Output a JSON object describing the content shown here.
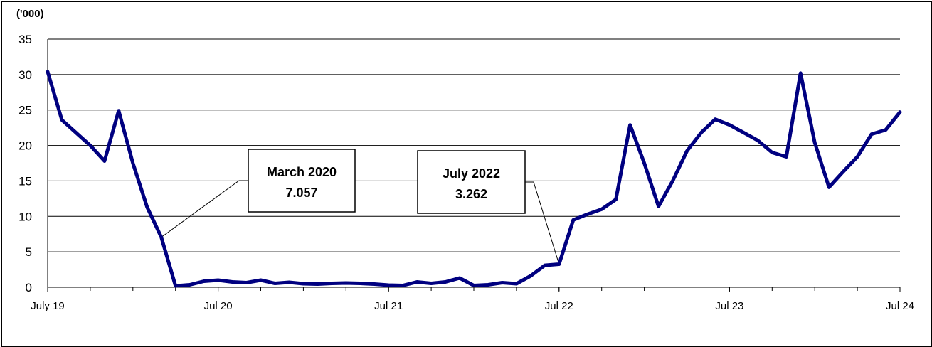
{
  "chart_data": {
    "type": "line",
    "unit_label": "('000)",
    "ylim": [
      0,
      35
    ],
    "yticks": [
      "0",
      "5",
      "10",
      "15",
      "20",
      "25",
      "30",
      "35"
    ],
    "xlim": [
      "2019-07",
      "2024-07"
    ],
    "xticks": [
      {
        "label": "July 19",
        "x": "2019-07"
      },
      {
        "label": "Jul 20",
        "x": "2020-07"
      },
      {
        "label": "Jul 21",
        "x": "2021-07"
      },
      {
        "label": "Jul 22",
        "x": "2022-07"
      },
      {
        "label": "Jul 23",
        "x": "2023-07"
      },
      {
        "label": "Jul 24",
        "x": "2024-07"
      }
    ],
    "grid": true,
    "line_color": "#000080",
    "series": [
      {
        "x": [
          "2019-07",
          "2019-08",
          "2019-09",
          "2019-10",
          "2019-11",
          "2019-12",
          "2020-01",
          "2020-02",
          "2020-03",
          "2020-04",
          "2020-05",
          "2020-06",
          "2020-07",
          "2020-08",
          "2020-09",
          "2020-10",
          "2020-11",
          "2020-12",
          "2021-01",
          "2021-02",
          "2021-03",
          "2021-04",
          "2021-05",
          "2021-06",
          "2021-07",
          "2021-08",
          "2021-09",
          "2021-10",
          "2021-11",
          "2021-12",
          "2022-01",
          "2022-02",
          "2022-03",
          "2022-04",
          "2022-05",
          "2022-06",
          "2022-07",
          "2022-08",
          "2022-09",
          "2022-10",
          "2022-11",
          "2022-12",
          "2023-01",
          "2023-02",
          "2023-03",
          "2023-04",
          "2023-05",
          "2023-06",
          "2023-07",
          "2023-08",
          "2023-09",
          "2023-10",
          "2023-11",
          "2023-12",
          "2024-01",
          "2024-02",
          "2024-03",
          "2024-04",
          "2024-05",
          "2024-06",
          "2024-07"
        ],
        "values": [
          30.4,
          23.6,
          21.8,
          20.0,
          17.8,
          24.9,
          17.5,
          11.3,
          7.057,
          0.2,
          0.35,
          0.85,
          1.0,
          0.75,
          0.65,
          1.0,
          0.55,
          0.7,
          0.5,
          0.45,
          0.55,
          0.6,
          0.55,
          0.45,
          0.3,
          0.25,
          0.75,
          0.55,
          0.75,
          1.3,
          0.25,
          0.35,
          0.65,
          0.5,
          1.6,
          3.1,
          3.262,
          9.5,
          10.3,
          11.0,
          12.4,
          22.9,
          17.5,
          11.4,
          15.0,
          19.2,
          21.8,
          23.7,
          22.9,
          21.8,
          20.7,
          19.0,
          18.4,
          30.2,
          20.4,
          14.1,
          16.3,
          18.4,
          21.6,
          22.2,
          24.7
        ]
      }
    ],
    "annotations": [
      {
        "label": "March 2020",
        "value": "7.057",
        "x": "2020-03",
        "y": 7.057
      },
      {
        "label": "July 2022",
        "value": "3.262",
        "x": "2022-07",
        "y": 3.262
      }
    ]
  }
}
